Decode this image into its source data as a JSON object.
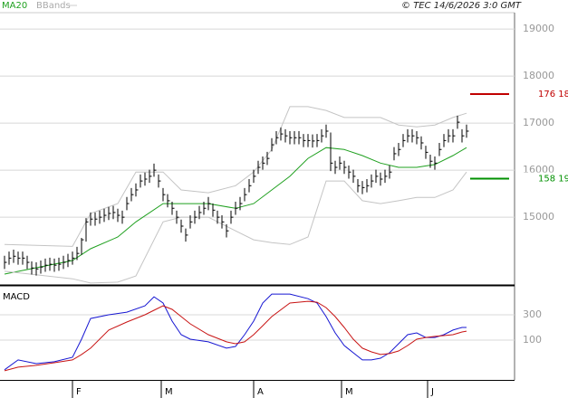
{
  "chart_data": [
    {
      "type": "ohlc",
      "copyright": "© TEC 14/6/2026 3:0 GMT",
      "xlim": [
        -1,
        112.6
      ],
      "ylim": [
        13560,
        19330
      ],
      "yticks": [
        15000,
        16000,
        17000,
        18000,
        19000
      ],
      "grid": true,
      "color": "#000000",
      "high": [
        14180,
        14270,
        14310,
        14270,
        14270,
        14180,
        14060,
        14040,
        14080,
        14120,
        14140,
        14120,
        14140,
        14180,
        14220,
        14270,
        14370,
        14560,
        14980,
        15100,
        15100,
        15140,
        15180,
        15220,
        15240,
        15180,
        15140,
        15430,
        15620,
        15720,
        15910,
        15950,
        16010,
        16140,
        15910,
        15620,
        15490,
        15330,
        15140,
        14950,
        14760,
        15040,
        15140,
        15240,
        15330,
        15430,
        15290,
        15140,
        15040,
        14850,
        15140,
        15330,
        15430,
        15620,
        15810,
        16010,
        16200,
        16290,
        16390,
        16680,
        16830,
        16910,
        16870,
        16830,
        16830,
        16830,
        16770,
        16770,
        16760,
        16770,
        16870,
        16970,
        16800,
        16200,
        16290,
        16200,
        16100,
        16010,
        15810,
        15770,
        15810,
        15910,
        16010,
        15950,
        16010,
        16100,
        16490,
        16580,
        16770,
        16870,
        16870,
        16830,
        16720,
        16520,
        16330,
        16290,
        16580,
        16770,
        16870,
        16870,
        17160,
        16870,
        16970
      ],
      "low": [
        13900,
        13990,
        14030,
        13990,
        13990,
        13900,
        13780,
        13760,
        13800,
        13840,
        13860,
        13840,
        13860,
        13900,
        13940,
        13990,
        14090,
        14200,
        14480,
        14820,
        14820,
        14860,
        14900,
        14940,
        14960,
        14900,
        14860,
        15150,
        15340,
        15440,
        15630,
        15670,
        15730,
        15860,
        15630,
        15340,
        15210,
        15050,
        14860,
        14670,
        14480,
        14760,
        14860,
        14960,
        15050,
        15150,
        15010,
        14860,
        14760,
        14570,
        14860,
        15050,
        15150,
        15340,
        15530,
        15730,
        15920,
        16010,
        16110,
        16400,
        16550,
        16630,
        16590,
        16550,
        16550,
        16550,
        16490,
        16490,
        16480,
        16490,
        16590,
        16690,
        15980,
        15920,
        16010,
        15920,
        15820,
        15730,
        15530,
        15490,
        15530,
        15630,
        15730,
        15670,
        15730,
        15820,
        16210,
        16300,
        16490,
        16590,
        16590,
        16550,
        16440,
        16240,
        16050,
        16010,
        16300,
        16490,
        16590,
        16590,
        16880,
        16590,
        16690
      ],
      "close": [
        14040,
        14130,
        14170,
        14130,
        14130,
        14040,
        13920,
        13900,
        13940,
        13980,
        14000,
        13980,
        14000,
        14040,
        14080,
        14130,
        14230,
        14520,
        14900,
        14960,
        14960,
        15000,
        15040,
        15080,
        15100,
        15040,
        15000,
        15290,
        15480,
        15580,
        15770,
        15810,
        15870,
        16000,
        15770,
        15480,
        15350,
        15190,
        15000,
        14810,
        14620,
        14900,
        15000,
        15100,
        15190,
        15290,
        15150,
        15000,
        14900,
        14710,
        15000,
        15190,
        15290,
        15480,
        15670,
        15870,
        16060,
        16150,
        16250,
        16540,
        16690,
        16770,
        16730,
        16690,
        16690,
        16690,
        16630,
        16630,
        16620,
        16630,
        16730,
        16830,
        16150,
        16060,
        16150,
        16060,
        15960,
        15870,
        15670,
        15630,
        15670,
        15770,
        15870,
        15810,
        15870,
        15960,
        16350,
        16440,
        16630,
        16730,
        16730,
        16690,
        16580,
        16380,
        16190,
        16150,
        16440,
        16630,
        16730,
        16730,
        17020,
        16730,
        16830
      ],
      "series": [
        {
          "name": "MA20",
          "color": "#1fa01f",
          "x": [
            0,
            15,
            19,
            25,
            29,
            35,
            39,
            45,
            51,
            55,
            59,
            63,
            67,
            71,
            75,
            79,
            83,
            87,
            91,
            95,
            99,
            102
          ],
          "values": [
            13790,
            14080,
            14330,
            14580,
            14900,
            15290,
            15290,
            15290,
            15190,
            15290,
            15580,
            15870,
            16250,
            16480,
            16440,
            16310,
            16150,
            16060,
            16060,
            16120,
            16310,
            16480
          ]
        },
        {
          "name": "BBands",
          "color": "#c4c4c4",
          "x": [
            0,
            15,
            19,
            25,
            29,
            35,
            39,
            45,
            51,
            55,
            59,
            63,
            67,
            71,
            75,
            79,
            83,
            87,
            91,
            95,
            99,
            102
          ],
          "upper": [
            14420,
            14380,
            15080,
            15290,
            15960,
            15960,
            15580,
            15520,
            15670,
            15960,
            16440,
            17350,
            17350,
            17270,
            17120,
            17120,
            17120,
            16960,
            16920,
            16960,
            17120,
            17210
          ],
          "lower": [
            13850,
            13690,
            13600,
            13620,
            13750,
            14900,
            15000,
            15000,
            14710,
            14520,
            14460,
            14420,
            14580,
            15770,
            15770,
            15350,
            15290,
            15350,
            15420,
            15420,
            15580,
            15960
          ]
        }
      ],
      "levels": [
        {
          "value": 17618,
          "label": "176 18",
          "color": "#c00000"
        },
        {
          "value": 15819,
          "label": "158 19",
          "color": "#009000"
        }
      ]
    },
    {
      "type": "line",
      "title": "MACD",
      "xlim": [
        -1,
        112.6
      ],
      "ylim": [
        -215,
        515
      ],
      "yticks": [
        100,
        300
      ],
      "xticks": [
        {
          "value": 15,
          "label": "F"
        },
        {
          "value": 34.6,
          "label": "M"
        },
        {
          "value": 55,
          "label": "A"
        },
        {
          "value": 74.4,
          "label": "M"
        },
        {
          "value": 93.4,
          "label": "J"
        }
      ],
      "grid": true,
      "x": [
        0,
        3,
        7,
        11,
        15,
        17,
        19,
        23,
        27,
        31,
        33,
        35,
        37,
        39,
        41,
        45,
        49,
        51,
        53,
        55,
        57,
        59,
        63,
        67,
        69,
        71,
        73,
        75,
        77,
        79,
        81,
        83,
        85,
        87,
        89,
        91,
        93,
        95,
        97,
        99,
        101,
        102
      ],
      "series": [
        {
          "color": "#1616d2",
          "values": [
            -135,
            -57,
            -86,
            -71,
            -36,
            107,
            271,
            300,
            321,
            371,
            443,
            393,
            250,
            143,
            107,
            86,
            36,
            50,
            143,
            250,
            393,
            464,
            464,
            428,
            393,
            286,
            157,
            57,
            0,
            -57,
            -57,
            -43,
            0,
            71,
            143,
            157,
            121,
            121,
            143,
            179,
            200,
            200
          ]
        },
        {
          "color": "#c81414",
          "values": [
            -143,
            -114,
            -100,
            -79,
            -57,
            -14,
            36,
            179,
            243,
            300,
            336,
            371,
            343,
            286,
            229,
            143,
            86,
            71,
            86,
            143,
            214,
            286,
            393,
            407,
            400,
            357,
            286,
            200,
            107,
            36,
            7,
            -14,
            -7,
            14,
            57,
            107,
            121,
            129,
            136,
            143,
            164,
            171
          ]
        }
      ]
    }
  ]
}
